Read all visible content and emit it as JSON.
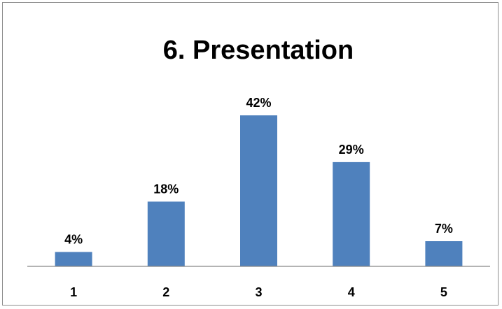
{
  "chart_data": {
    "type": "bar",
    "title": "6. Presentation",
    "categories": [
      "1",
      "2",
      "3",
      "4",
      "5"
    ],
    "values": [
      4,
      18,
      42,
      29,
      7
    ],
    "data_labels": [
      "4%",
      "18%",
      "42%",
      "29%",
      "7%"
    ],
    "ylim": [
      0,
      42
    ],
    "grid": false,
    "legend": "none",
    "bar_color": "#4f81bd",
    "axis_color": "#868686"
  }
}
